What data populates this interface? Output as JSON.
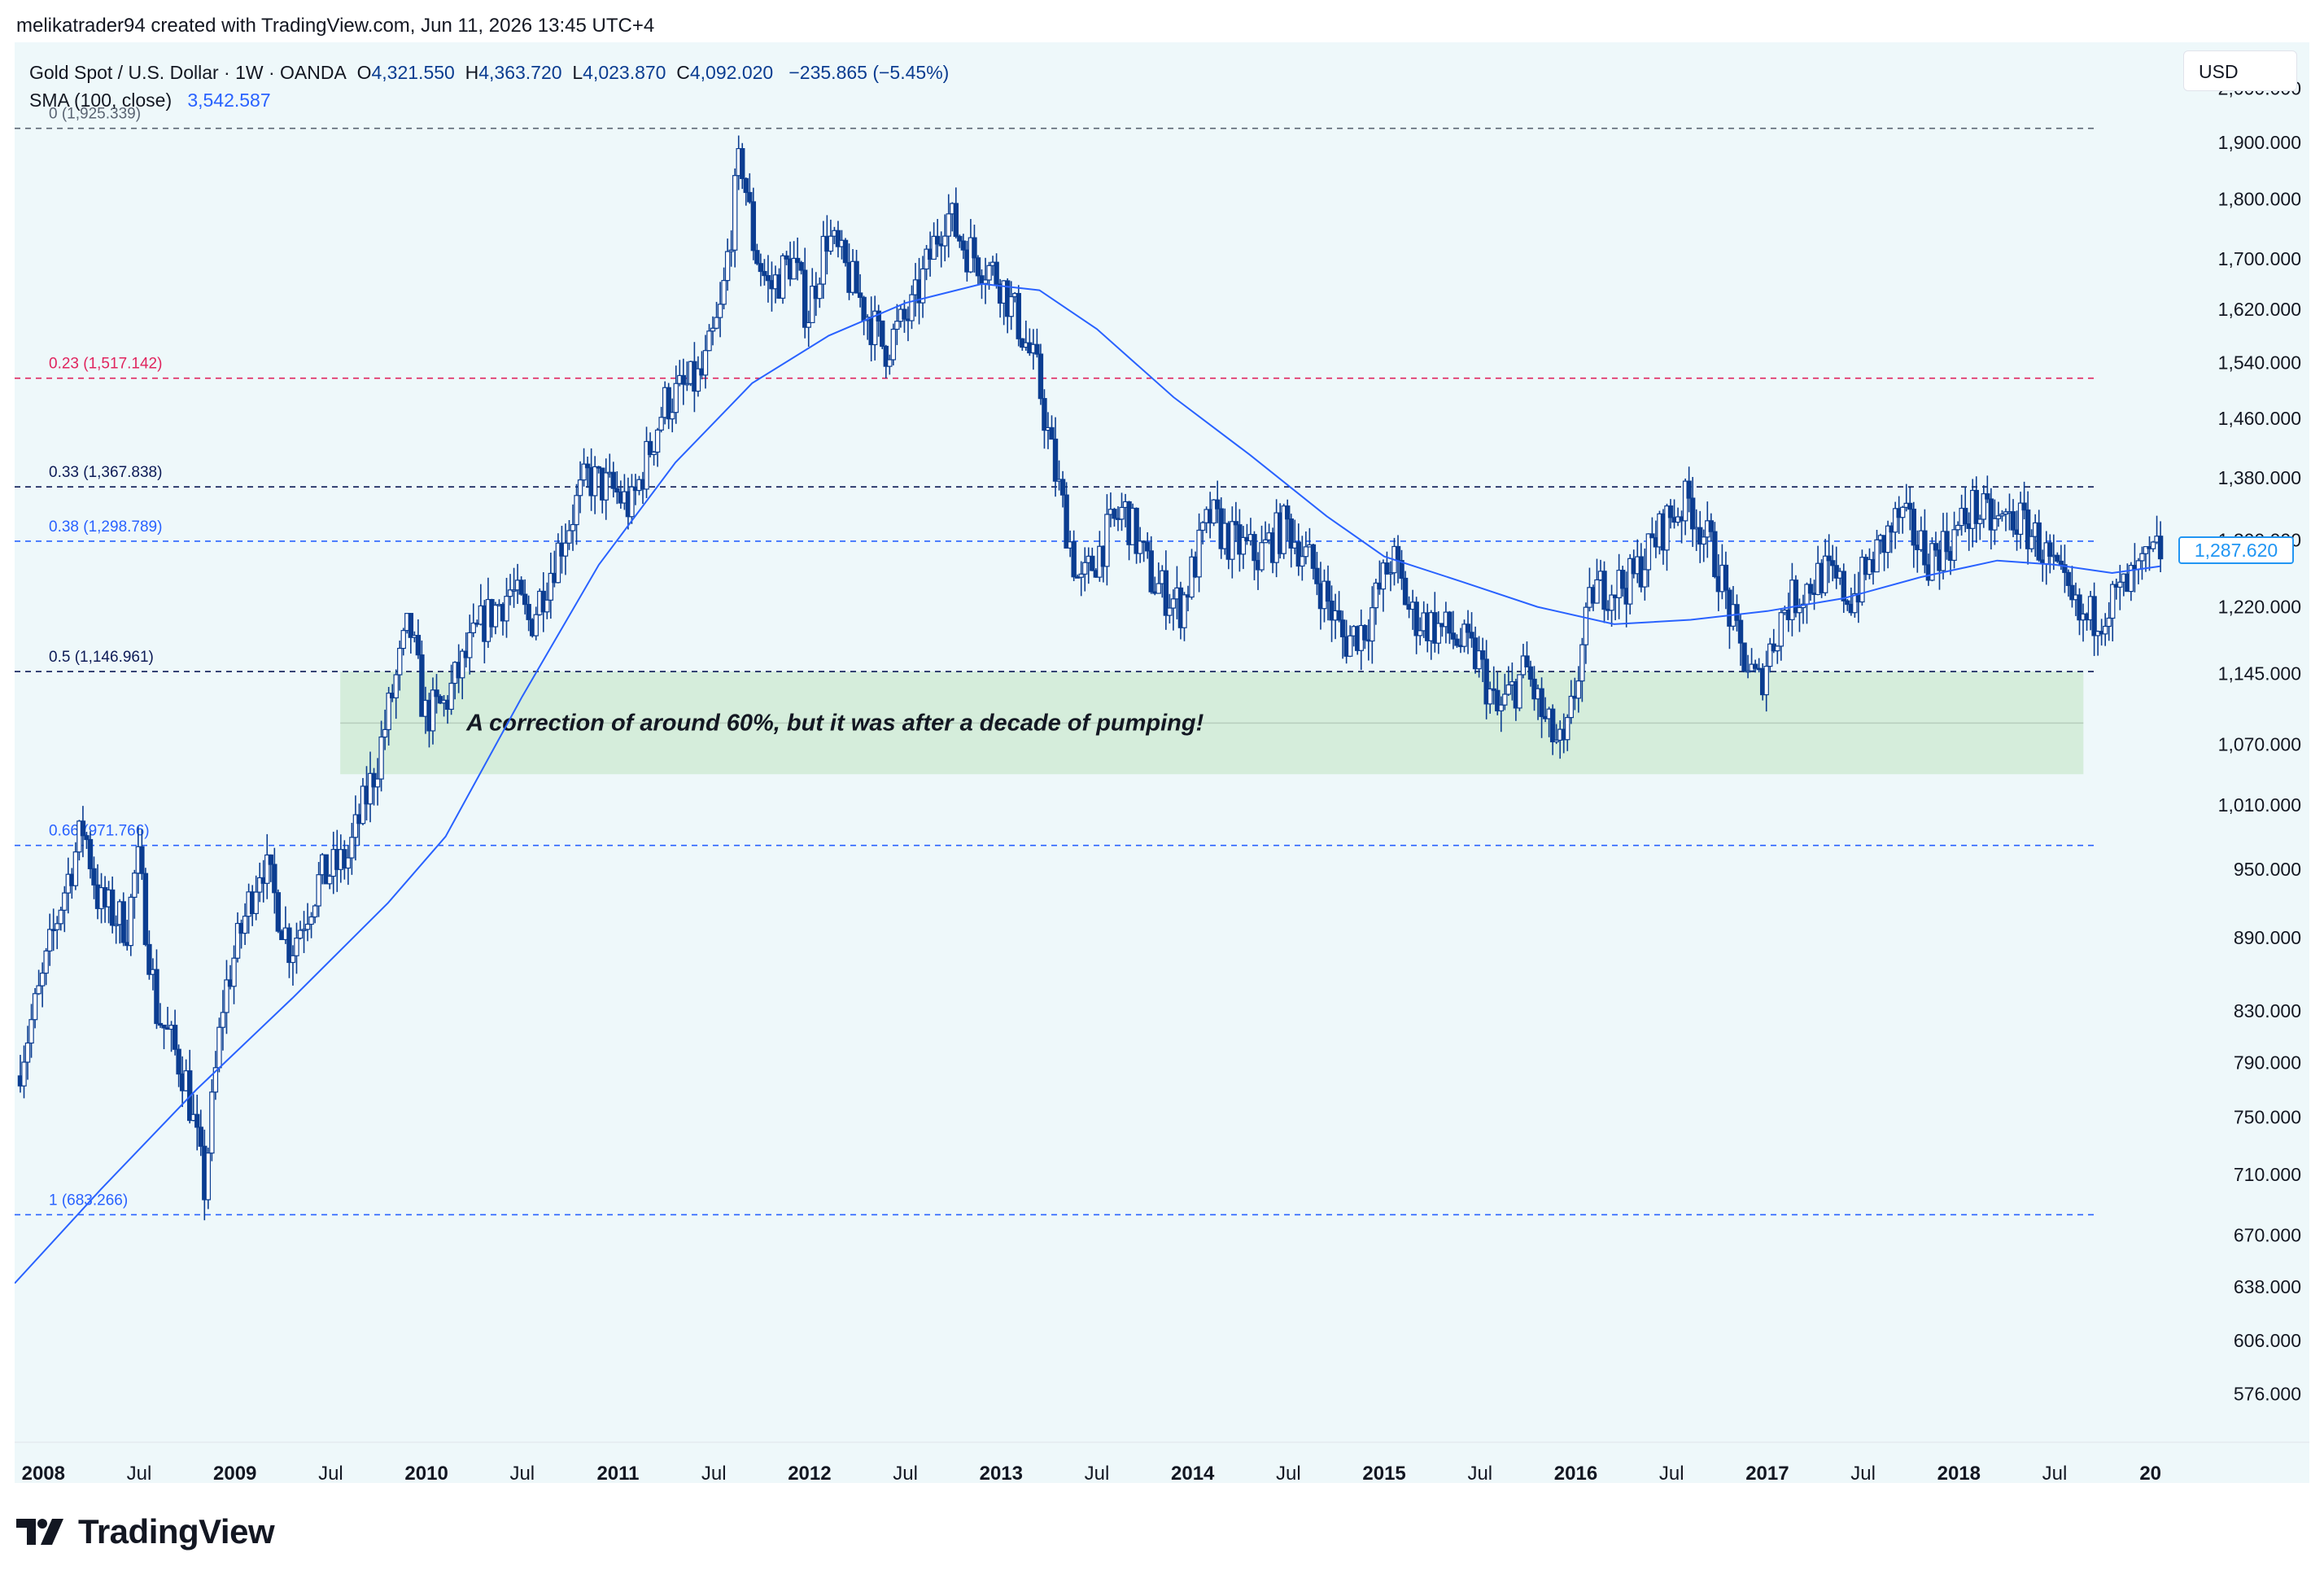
{
  "header": {
    "credit": "melikatrader94 created with TradingView.com, Jun 11, 2026 13:45 UTC+4"
  },
  "legend": {
    "symbol": "Gold Spot / U.S. Dollar · 1W · OANDA",
    "open_label": "O",
    "open": "4,321.550",
    "high_label": "H",
    "high": "4,363.720",
    "low_label": "L",
    "low": "4,023.870",
    "close_label": "C",
    "close": "4,092.020",
    "change": "−235.865 (−5.45%)",
    "sma_label": "SMA (100, close)",
    "sma_value": "3,542.587"
  },
  "currency": "USD",
  "last_price_label": "1,287.620",
  "annotation": "A correction of around 60%, but it was after a decade of pumping!",
  "logo": {
    "text": "TradingView",
    "icon": "tradingview-logo-icon"
  },
  "colors": {
    "background": "#eef8fa",
    "candle": "#0b3d91",
    "sma": "#2962ff",
    "fib_red": "#e0245e",
    "fib_blue": "#2962ff",
    "fib_dark": "#0d1b57",
    "zone_fill": "#d3ecd9"
  },
  "chart_data": {
    "type": "candlestick",
    "scale": "log",
    "timeframe": "1W",
    "ylim": [
      550,
      2090
    ],
    "y_ticks": [
      "2,000.000",
      "1,900.000",
      "1,800.000",
      "1,700.000",
      "1,620.000",
      "1,540.000",
      "1,460.000",
      "1,380.000",
      "1,300.000",
      "1,220.000",
      "1,145.000",
      "1,070.000",
      "1,010.000",
      "950.000",
      "890.000",
      "830.000",
      "790.000",
      "750.000",
      "710.000",
      "670.000",
      "638.000",
      "606.000",
      "576.000"
    ],
    "x_ticks": [
      "2008",
      "Jul",
      "2009",
      "Jul",
      "2010",
      "Jul",
      "2011",
      "Jul",
      "2012",
      "Jul",
      "2013",
      "Jul",
      "2014",
      "Jul",
      "2015",
      "Jul",
      "2016",
      "Jul",
      "2017",
      "Jul",
      "2018",
      "Jul",
      "20"
    ],
    "x_range_years": [
      2007.85,
      2019.15
    ],
    "fib_levels": [
      {
        "label": "0 (1,925.339)",
        "value": 1925.339,
        "color": "#5a6473"
      },
      {
        "label": "0.23 (1,517.142)",
        "value": 1517.142,
        "color": "#e0245e"
      },
      {
        "label": "0.33 (1,367.838)",
        "value": 1367.838,
        "color": "#0d1b57"
      },
      {
        "label": "0.38 (1,298.789)",
        "value": 1298.789,
        "color": "#2962ff"
      },
      {
        "label": "0.5 (1,146.961)",
        "value": 1146.961,
        "color": "#0d1b57"
      },
      {
        "label": "0.66 (971.766)",
        "value": 971.766,
        "color": "#2962ff"
      },
      {
        "label": "1 (683.266)",
        "value": 683.266,
        "color": "#2962ff"
      }
    ],
    "zone": {
      "from_year": 2009.55,
      "to_year": 2018.65,
      "top": 1146.961,
      "bottom": 1040,
      "mid": 1092
    },
    "price_path": [
      [
        2007.87,
        780
      ],
      [
        2008.0,
        850
      ],
      [
        2008.1,
        920
      ],
      [
        2008.22,
        990
      ],
      [
        2008.3,
        920
      ],
      [
        2008.45,
        900
      ],
      [
        2008.5,
        960
      ],
      [
        2008.6,
        830
      ],
      [
        2008.75,
        780
      ],
      [
        2008.85,
        700
      ],
      [
        2008.95,
        840
      ],
      [
        2009.05,
        900
      ],
      [
        2009.15,
        960
      ],
      [
        2009.3,
        880
      ],
      [
        2009.45,
        940
      ],
      [
        2009.6,
        960
      ],
      [
        2009.75,
        1050
      ],
      [
        2009.92,
        1200
      ],
      [
        2010.0,
        1100
      ],
      [
        2010.1,
        1110
      ],
      [
        2010.3,
        1200
      ],
      [
        2010.45,
        1240
      ],
      [
        2010.55,
        1200
      ],
      [
        2010.7,
        1290
      ],
      [
        2010.85,
        1380
      ],
      [
        2011.0,
        1360
      ],
      [
        2011.08,
        1340
      ],
      [
        2011.25,
        1480
      ],
      [
        2011.45,
        1520
      ],
      [
        2011.55,
        1620
      ],
      [
        2011.65,
        1880
      ],
      [
        2011.72,
        1720
      ],
      [
        2011.8,
        1650
      ],
      [
        2011.92,
        1700
      ],
      [
        2012.0,
        1610
      ],
      [
        2012.1,
        1740
      ],
      [
        2012.25,
        1650
      ],
      [
        2012.4,
        1560
      ],
      [
        2012.55,
        1620
      ],
      [
        2012.72,
        1780
      ],
      [
        2012.82,
        1720
      ],
      [
        2013.0,
        1670
      ],
      [
        2013.1,
        1600
      ],
      [
        2013.2,
        1520
      ],
      [
        2013.28,
        1400
      ],
      [
        2013.42,
        1240
      ],
      [
        2013.55,
        1300
      ],
      [
        2013.65,
        1340
      ],
      [
        2013.8,
        1250
      ],
      [
        2013.95,
        1220
      ],
      [
        2014.1,
        1330
      ],
      [
        2014.2,
        1300
      ],
      [
        2014.35,
        1280
      ],
      [
        2014.5,
        1320
      ],
      [
        2014.65,
        1260
      ],
      [
        2014.8,
        1180
      ],
      [
        2014.92,
        1200
      ],
      [
        2015.05,
        1280
      ],
      [
        2015.15,
        1210
      ],
      [
        2015.35,
        1190
      ],
      [
        2015.5,
        1160
      ],
      [
        2015.6,
        1100
      ],
      [
        2015.75,
        1150
      ],
      [
        2015.85,
        1090
      ],
      [
        2015.95,
        1060
      ],
      [
        2016.1,
        1240
      ],
      [
        2016.3,
        1250
      ],
      [
        2016.5,
        1330
      ],
      [
        2016.6,
        1350
      ],
      [
        2016.75,
        1270
      ],
      [
        2016.85,
        1180
      ],
      [
        2016.96,
        1130
      ],
      [
        2017.1,
        1220
      ],
      [
        2017.3,
        1260
      ],
      [
        2017.45,
        1230
      ],
      [
        2017.55,
        1270
      ],
      [
        2017.7,
        1330
      ],
      [
        2017.85,
        1280
      ],
      [
        2017.97,
        1300
      ],
      [
        2018.08,
        1340
      ],
      [
        2018.2,
        1320
      ],
      [
        2018.3,
        1330
      ],
      [
        2018.42,
        1300
      ],
      [
        2018.55,
        1240
      ],
      [
        2018.65,
        1200
      ],
      [
        2018.78,
        1220
      ],
      [
        2018.92,
        1250
      ],
      [
        2019.05,
        1287
      ]
    ],
    "sma_path": [
      [
        2007.85,
        640
      ],
      [
        2008.3,
        700
      ],
      [
        2008.8,
        770
      ],
      [
        2009.3,
        840
      ],
      [
        2009.8,
        920
      ],
      [
        2010.1,
        980
      ],
      [
        2010.5,
        1120
      ],
      [
        2010.9,
        1270
      ],
      [
        2011.3,
        1400
      ],
      [
        2011.7,
        1510
      ],
      [
        2012.1,
        1580
      ],
      [
        2012.5,
        1630
      ],
      [
        2012.9,
        1660
      ],
      [
        2013.2,
        1650
      ],
      [
        2013.5,
        1590
      ],
      [
        2013.9,
        1490
      ],
      [
        2014.3,
        1410
      ],
      [
        2014.7,
        1330
      ],
      [
        2015.0,
        1280
      ],
      [
        2015.4,
        1250
      ],
      [
        2015.8,
        1220
      ],
      [
        2016.2,
        1200
      ],
      [
        2016.6,
        1205
      ],
      [
        2017.0,
        1215
      ],
      [
        2017.4,
        1230
      ],
      [
        2017.8,
        1255
      ],
      [
        2018.2,
        1275
      ],
      [
        2018.5,
        1270
      ],
      [
        2018.8,
        1260
      ],
      [
        2019.05,
        1268
      ]
    ]
  }
}
